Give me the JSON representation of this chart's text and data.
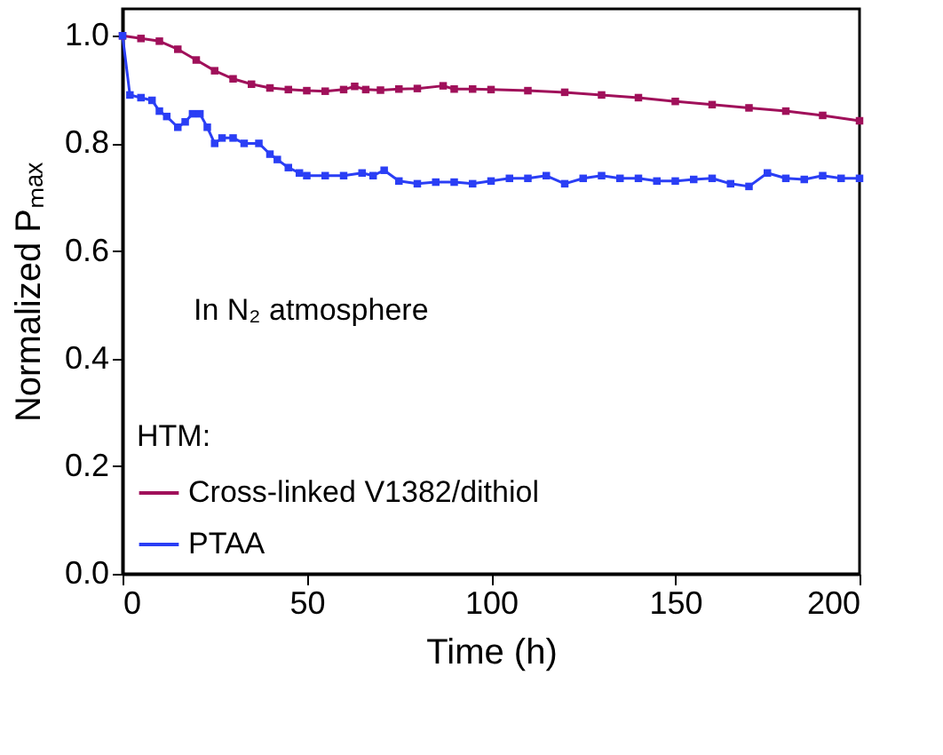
{
  "chart_data": {
    "type": "line",
    "xlabel": "Time (h)",
    "ylabel": "Normalized Pₘₐₓ",
    "xlim": [
      0,
      200
    ],
    "xticks": [
      0,
      50,
      100,
      150,
      200
    ],
    "ylim": [
      0,
      1.05
    ],
    "yticks": [
      {
        "value": 0,
        "label": "0.0"
      },
      {
        "value": 0.2,
        "label": "0.2"
      },
      {
        "value": 0.4,
        "label": "0.4"
      },
      {
        "value": 0.6,
        "label": "0.6"
      },
      {
        "value": 0.8,
        "label": "0.8"
      },
      {
        "value": 1.0,
        "label": "1.0"
      }
    ],
    "legend": "bottom left",
    "legend_title": "HTM:",
    "marker": "square",
    "line_style": "solid",
    "grid": false,
    "annotations": [
      "In N₂ atmosphere"
    ],
    "series": [
      {
        "name": "Cross-linked V1382/dithiol",
        "color": "#a0105a",
        "x": [
          0,
          5,
          10,
          15,
          20,
          25,
          30,
          35,
          40,
          45,
          50,
          55,
          60,
          63,
          66,
          70,
          75,
          80,
          87,
          90,
          95,
          100,
          110,
          120,
          130,
          140,
          150,
          160,
          170,
          180,
          190,
          200
        ],
        "values": [
          1.0,
          0.995,
          0.99,
          0.975,
          0.955,
          0.935,
          0.92,
          0.91,
          0.903,
          0.9,
          0.898,
          0.897,
          0.9,
          0.906,
          0.9,
          0.899,
          0.901,
          0.902,
          0.907,
          0.901,
          0.901,
          0.9,
          0.898,
          0.895,
          0.89,
          0.885,
          0.878,
          0.872,
          0.866,
          0.86,
          0.852,
          0.842
        ]
      },
      {
        "name": "PTAA",
        "color": "#2a3ef5",
        "x": [
          0,
          2,
          5,
          8,
          10,
          12,
          15,
          17,
          19,
          21,
          23,
          25,
          27,
          30,
          33,
          37,
          40,
          42,
          45,
          48,
          50,
          55,
          60,
          65,
          68,
          71,
          75,
          80,
          85,
          90,
          95,
          100,
          105,
          110,
          115,
          120,
          125,
          130,
          135,
          140,
          145,
          150,
          155,
          160,
          165,
          170,
          175,
          180,
          185,
          190,
          195,
          200
        ],
        "values": [
          1.0,
          0.89,
          0.885,
          0.88,
          0.86,
          0.85,
          0.83,
          0.84,
          0.855,
          0.855,
          0.83,
          0.8,
          0.81,
          0.81,
          0.8,
          0.8,
          0.78,
          0.77,
          0.755,
          0.745,
          0.74,
          0.74,
          0.74,
          0.745,
          0.74,
          0.75,
          0.73,
          0.725,
          0.728,
          0.728,
          0.725,
          0.73,
          0.735,
          0.735,
          0.74,
          0.725,
          0.735,
          0.74,
          0.735,
          0.735,
          0.73,
          0.73,
          0.733,
          0.735,
          0.725,
          0.72,
          0.745,
          0.735,
          0.733,
          0.74,
          0.735,
          0.735
        ]
      }
    ]
  }
}
